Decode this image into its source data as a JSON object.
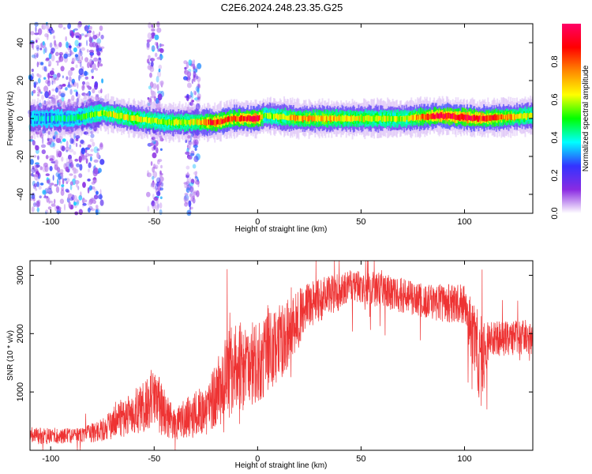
{
  "title": "C2E6.2024.248.23.35.G25",
  "chart_data": [
    {
      "type": "heatmap",
      "xlabel": "Height of straight line (km)",
      "ylabel": "Frequency (Hz)",
      "xlim": [
        -110,
        133
      ],
      "ylim": [
        -50,
        50
      ],
      "xticks": [
        -100,
        -50,
        0,
        50,
        100
      ],
      "yticks": [
        -40,
        -20,
        0,
        20,
        40
      ],
      "colorbar": {
        "label": "Normalized spectral amplitude",
        "range": [
          0.0,
          1.0
        ],
        "ticks": [
          0.0,
          0.2,
          0.4,
          0.6,
          0.8
        ],
        "tick_labels": [
          "0.0",
          "0.2",
          "0.4",
          "0.6",
          "0.8"
        ],
        "colormap": "rainbow",
        "stops": [
          "#ffffff",
          "#8a2be2",
          "#3333ff",
          "#00ffff",
          "#00ff00",
          "#ffff00",
          "#ff8800",
          "#ff0000",
          "#ff0066"
        ]
      },
      "ridge": [
        {
          "x": -110,
          "f": 0.0,
          "amp": 0.35
        },
        {
          "x": -90,
          "f": 0.0,
          "amp": 0.4
        },
        {
          "x": -75,
          "f": 3.0,
          "amp": 0.55
        },
        {
          "x": -60,
          "f": 0.0,
          "amp": 0.6
        },
        {
          "x": -45,
          "f": -2.0,
          "amp": 0.55
        },
        {
          "x": -30,
          "f": -2.0,
          "amp": 0.6
        },
        {
          "x": -20,
          "f": -2.0,
          "amp": 0.85
        },
        {
          "x": -12,
          "f": 0.0,
          "amp": 0.75
        },
        {
          "x": 0,
          "f": 0.0,
          "amp": 0.9
        },
        {
          "x": 3,
          "f": 1.5,
          "amp": 0.5
        },
        {
          "x": 20,
          "f": 0.0,
          "amp": 0.7
        },
        {
          "x": 50,
          "f": 0.0,
          "amp": 0.6
        },
        {
          "x": 70,
          "f": 0.0,
          "amp": 0.55
        },
        {
          "x": 88,
          "f": 1.5,
          "amp": 0.9
        },
        {
          "x": 108,
          "f": 0.0,
          "amp": 0.85
        },
        {
          "x": 133,
          "f": 1.5,
          "amp": 0.55
        }
      ],
      "noise_regions": [
        {
          "x_from": -110,
          "x_to": -75,
          "f_from": -50,
          "f_to": 50
        },
        {
          "x_from": -53,
          "x_to": -46,
          "f_from": -50,
          "f_to": 50
        },
        {
          "x_from": -35,
          "x_to": -28,
          "f_from": -50,
          "f_to": 30
        }
      ]
    },
    {
      "type": "line",
      "xlabel": "Height of straight line (km)",
      "ylabel": "SNR (10 * v/v)",
      "xlim": [
        -110,
        133
      ],
      "ylim": [
        0,
        3250
      ],
      "xticks": [
        -100,
        -50,
        0,
        50,
        100
      ],
      "yticks": [
        1000,
        2000,
        3000
      ],
      "color": "#ee3333",
      "envelope": [
        {
          "x": -110,
          "mean": 250,
          "amp": 150
        },
        {
          "x": -85,
          "mean": 250,
          "amp": 130
        },
        {
          "x": -75,
          "mean": 350,
          "amp": 200
        },
        {
          "x": -62,
          "mean": 600,
          "amp": 350
        },
        {
          "x": -50,
          "mean": 900,
          "amp": 550
        },
        {
          "x": -40,
          "mean": 450,
          "amp": 300
        },
        {
          "x": -25,
          "mean": 700,
          "amp": 450
        },
        {
          "x": -12,
          "mean": 1400,
          "amp": 800
        },
        {
          "x": 0,
          "mean": 1500,
          "amp": 700
        },
        {
          "x": 10,
          "mean": 1800,
          "amp": 700
        },
        {
          "x": 25,
          "mean": 2500,
          "amp": 400
        },
        {
          "x": 45,
          "mean": 2800,
          "amp": 300
        },
        {
          "x": 60,
          "mean": 2750,
          "amp": 300
        },
        {
          "x": 80,
          "mean": 2550,
          "amp": 300
        },
        {
          "x": 100,
          "mean": 2500,
          "amp": 350
        },
        {
          "x": 108,
          "mean": 1500,
          "amp": 800
        },
        {
          "x": 112,
          "mean": 1900,
          "amp": 300
        },
        {
          "x": 133,
          "mean": 1950,
          "amp": 300
        }
      ]
    }
  ]
}
